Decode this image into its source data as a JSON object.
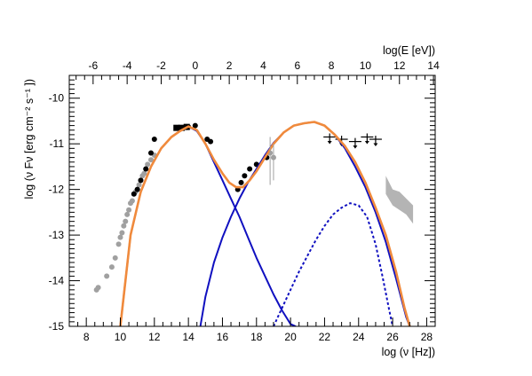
{
  "chart_data": {
    "type": "scatter",
    "title": "",
    "xlabel": "log (ν [Hz])",
    "ylabel": "log (ν Fν [erg cm⁻² s⁻¹ ])",
    "x2label": "log(E [eV])",
    "xlim": [
      7,
      28.5
    ],
    "ylim": [
      -15,
      -9.5
    ],
    "x2lim": [
      -7.4,
      14.1
    ],
    "x_ticks": [
      8,
      10,
      12,
      14,
      16,
      18,
      20,
      22,
      24,
      26,
      28
    ],
    "y_ticks": [
      -15,
      -14,
      -13,
      -12,
      -11,
      -10
    ],
    "x2_ticks": [
      -6,
      -4,
      -2,
      0,
      2,
      4,
      6,
      8,
      10,
      12,
      14
    ],
    "grid": false,
    "colors": {
      "axes": "#000000",
      "total_model": "#f08a3c",
      "synchrotron": "#1010c0",
      "inverse_compton": "#1010c0",
      "dashed_component": "#1010c0",
      "archival_points": "#a0a0a0",
      "measured_points": "#000000",
      "vhe_band": "#b4b4b4"
    },
    "series": [
      {
        "kind": "curve",
        "style": "solid",
        "role": "total_model",
        "x": [
          10.0,
          10.6,
          11.2,
          11.8,
          12.4,
          13.0,
          13.5,
          14.0,
          14.5,
          15.0,
          15.5,
          16.0,
          16.4,
          16.8,
          17.2,
          17.6,
          18.0,
          18.5,
          19.0,
          19.6,
          20.2,
          20.8,
          21.4,
          22.0,
          22.6,
          23.2,
          23.8,
          24.4,
          25.0,
          25.6,
          26.2,
          26.7,
          27.0
        ],
        "y": [
          -15.0,
          -13.0,
          -12.05,
          -11.5,
          -11.1,
          -10.85,
          -10.72,
          -10.62,
          -10.7,
          -11.0,
          -11.35,
          -11.65,
          -11.85,
          -11.95,
          -11.95,
          -11.8,
          -11.6,
          -11.3,
          -11.0,
          -10.75,
          -10.6,
          -10.55,
          -10.52,
          -10.6,
          -10.8,
          -11.05,
          -11.4,
          -11.85,
          -12.4,
          -13.0,
          -13.8,
          -14.6,
          -15.0
        ]
      },
      {
        "kind": "curve",
        "style": "solid",
        "role": "synchrotron",
        "x": [
          10.0,
          10.6,
          11.2,
          11.8,
          12.4,
          13.0,
          13.5,
          14.0,
          14.5,
          15.0,
          15.5,
          16.0,
          16.5,
          17.0,
          17.5,
          18.0,
          18.5,
          19.0,
          19.5,
          20.0,
          20.3
        ],
        "y": [
          -15.0,
          -13.0,
          -12.05,
          -11.5,
          -11.1,
          -10.85,
          -10.72,
          -10.62,
          -10.72,
          -11.0,
          -11.4,
          -11.8,
          -12.2,
          -12.6,
          -13.05,
          -13.5,
          -13.9,
          -14.3,
          -14.65,
          -14.95,
          -15.0
        ]
      },
      {
        "kind": "curve",
        "style": "solid",
        "role": "inverse_compton",
        "x": [
          14.7,
          15.0,
          15.5,
          16.0,
          16.5,
          17.0,
          17.5,
          18.0,
          18.5,
          19.0,
          19.6,
          20.2,
          20.8,
          21.4,
          22.0,
          22.6,
          23.2,
          23.8,
          24.4,
          25.0,
          25.6,
          26.2,
          26.8,
          27.0
        ],
        "y": [
          -15.0,
          -14.35,
          -13.6,
          -13.05,
          -12.6,
          -12.2,
          -11.85,
          -11.55,
          -11.25,
          -10.98,
          -10.75,
          -10.6,
          -10.55,
          -10.52,
          -10.6,
          -10.8,
          -11.1,
          -11.5,
          -11.95,
          -12.5,
          -13.15,
          -13.95,
          -14.8,
          -15.0
        ]
      },
      {
        "kind": "curve",
        "style": "dashed",
        "role": "dashed_component",
        "x": [
          19.0,
          19.5,
          20.0,
          20.5,
          21.0,
          21.5,
          22.0,
          22.5,
          23.0,
          23.5,
          24.0,
          24.5,
          25.0,
          25.4,
          25.8,
          26.0
        ],
        "y": [
          -15.0,
          -14.6,
          -14.2,
          -13.8,
          -13.45,
          -13.1,
          -12.8,
          -12.55,
          -12.4,
          -12.3,
          -12.35,
          -12.6,
          -13.2,
          -13.9,
          -14.65,
          -15.0
        ]
      },
      {
        "kind": "points",
        "role": "archival_points",
        "marker": "circle",
        "x": [
          8.6,
          8.7,
          9.2,
          9.5,
          9.7,
          9.9,
          10.0,
          10.1,
          10.2,
          10.3,
          10.4,
          10.5,
          10.6,
          10.7,
          10.8,
          10.9,
          11.0,
          11.1,
          11.2,
          11.3,
          11.4,
          11.5,
          11.6,
          11.8,
          12.0,
          18.8,
          19.0
        ],
        "y": [
          -14.2,
          -14.15,
          -13.9,
          -13.7,
          -13.5,
          -13.2,
          -13.05,
          -12.95,
          -12.8,
          -12.7,
          -12.55,
          -12.45,
          -12.3,
          -12.25,
          -12.1,
          -12.05,
          -12.0,
          -11.9,
          -11.8,
          -11.7,
          -11.65,
          -11.55,
          -11.45,
          -11.35,
          -11.25,
          -11.2,
          -11.3
        ]
      },
      {
        "kind": "points",
        "role": "measured_points",
        "marker": "circle",
        "x": [
          10.8,
          11.0,
          11.2,
          11.5,
          11.8,
          12.0,
          14.0,
          14.4,
          15.1,
          15.3,
          16.9,
          17.1,
          17.3,
          17.6,
          18.0,
          18.6
        ],
        "y": [
          -12.1,
          -12.0,
          -11.8,
          -11.55,
          -11.2,
          -10.9,
          -10.63,
          -10.6,
          -10.9,
          -10.95,
          -12.0,
          -11.85,
          -11.7,
          -11.55,
          -11.45,
          -11.3
        ]
      },
      {
        "kind": "points",
        "role": "measured_points",
        "marker": "square",
        "x": [
          13.3,
          13.6,
          13.9
        ],
        "y": [
          -10.65,
          -10.65,
          -10.63
        ]
      },
      {
        "kind": "upper_limits",
        "role": "measured_points",
        "x": [
          22.3,
          23.0,
          23.8,
          24.5,
          25.0
        ],
        "y": [
          -10.85,
          -10.9,
          -10.95,
          -10.85,
          -10.9
        ]
      },
      {
        "kind": "band",
        "role": "vhe_band",
        "x": [
          25.6,
          26.0,
          26.4,
          26.8,
          27.2
        ],
        "y_upper": [
          -11.7,
          -12.0,
          -12.05,
          -12.2,
          -12.35
        ],
        "y_lower": [
          -12.1,
          -12.35,
          -12.45,
          -12.55,
          -12.75
        ]
      }
    ]
  }
}
